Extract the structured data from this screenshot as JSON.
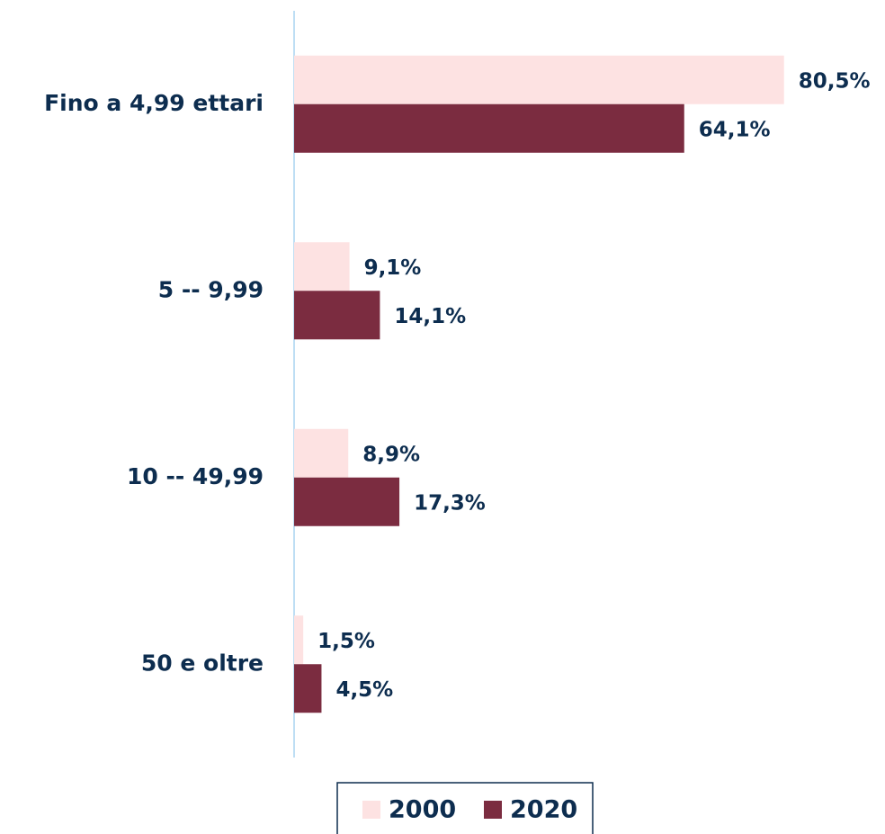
{
  "chart_data": {
    "type": "barh",
    "categories": [
      "Fino a 4,99 ettari",
      "5 -- 9,99",
      "10 -- 49,99",
      "50 e oltre"
    ],
    "series": [
      {
        "name": "2000",
        "color": "#fde2e2",
        "values": [
          80.5,
          9.1,
          8.9,
          1.5
        ],
        "value_labels": [
          "80,5%",
          "9,1%",
          "8,9%",
          "1,5%"
        ]
      },
      {
        "name": "2020",
        "color": "#7b2c40",
        "values": [
          64.1,
          14.1,
          17.3,
          4.5
        ],
        "value_labels": [
          "64,1%",
          "14,1%",
          "17,3%",
          "4,5%"
        ]
      }
    ],
    "xlim": [
      0,
      90
    ],
    "legend": "bottom"
  }
}
